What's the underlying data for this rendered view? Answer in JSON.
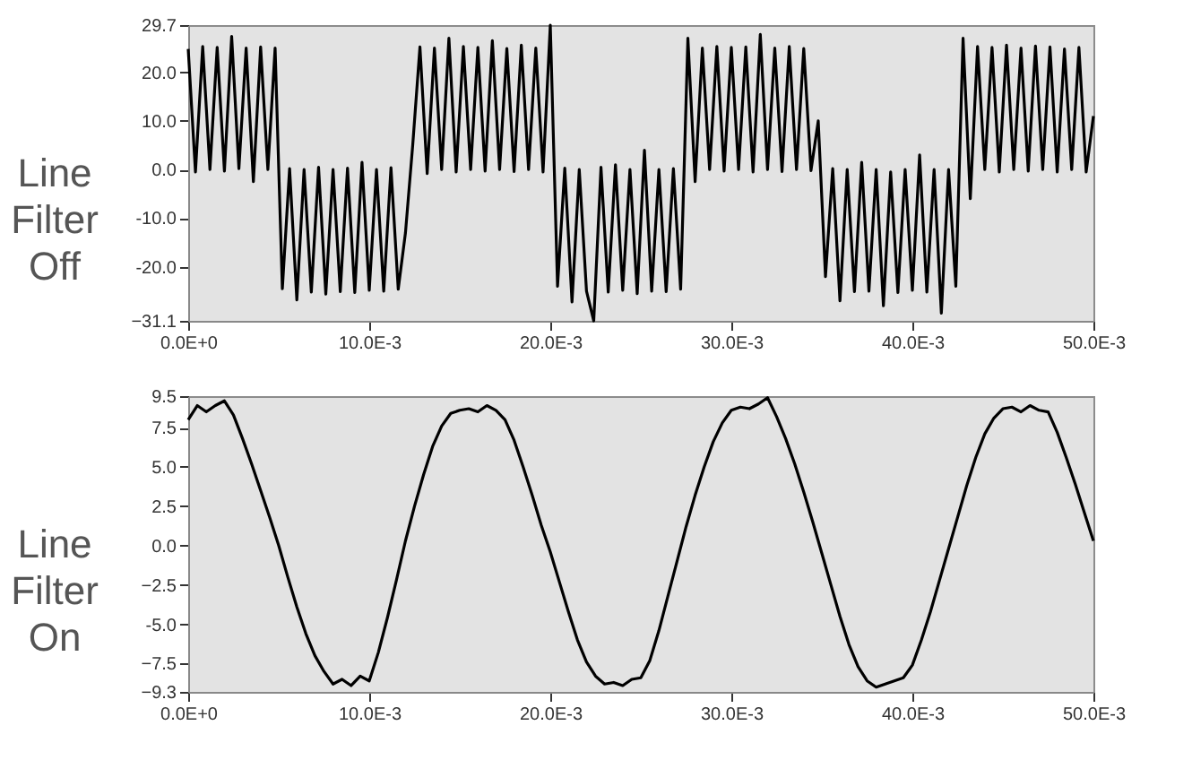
{
  "chart_data": [
    {
      "type": "line",
      "ylabel": "Line Filter Off",
      "color": "#000000",
      "grid": false,
      "xlim": [
        0,
        0.05
      ],
      "ylim": [
        -31.1,
        29.7
      ],
      "xticks": [
        {
          "value": 0,
          "label": "0.0E+0"
        },
        {
          "value": 0.01,
          "label": "10.0E-3"
        },
        {
          "value": 0.02,
          "label": "20.0E-3"
        },
        {
          "value": 0.03,
          "label": "30.0E-3"
        },
        {
          "value": 0.04,
          "label": "40.0E-3"
        },
        {
          "value": 0.05,
          "label": "50.0E-3"
        }
      ],
      "yticks": [
        29.7,
        {
          "value": 20,
          "label": "20.0"
        },
        {
          "value": 10,
          "label": "10.0"
        },
        {
          "value": 0,
          "label": "0.0"
        },
        {
          "value": -10,
          "label": "-10.0"
        },
        {
          "value": -20,
          "label": "-20.0"
        },
        -31.1
      ],
      "x": [
        0,
        0.0004,
        0.0008,
        0.0012,
        0.0016,
        0.002,
        0.0024,
        0.0028,
        0.0032,
        0.0036,
        0.004,
        0.0044,
        0.0048,
        0.0052,
        0.0056,
        0.006,
        0.0064,
        0.0068,
        0.0072,
        0.0076,
        0.008,
        0.0084,
        0.0088,
        0.0092,
        0.0096,
        0.01,
        0.0104,
        0.0108,
        0.0112,
        0.0116,
        0.012,
        0.0124,
        0.0128,
        0.0132,
        0.0136,
        0.014,
        0.0144,
        0.0148,
        0.0152,
        0.0156,
        0.016,
        0.0164,
        0.0168,
        0.0172,
        0.0176,
        0.018,
        0.0184,
        0.0188,
        0.0192,
        0.0196,
        0.02,
        0.0204,
        0.0208,
        0.0212,
        0.0216,
        0.022,
        0.0224,
        0.0228,
        0.0232,
        0.0236,
        0.024,
        0.0244,
        0.0248,
        0.0252,
        0.0256,
        0.026,
        0.0264,
        0.0268,
        0.0272,
        0.0276,
        0.028,
        0.0284,
        0.0288,
        0.0292,
        0.0296,
        0.03,
        0.0304,
        0.0308,
        0.0312,
        0.0316,
        0.032,
        0.0324,
        0.0328,
        0.0332,
        0.0336,
        0.034,
        0.0344,
        0.0348,
        0.0352,
        0.0356,
        0.036,
        0.0364,
        0.0368,
        0.0372,
        0.0376,
        0.038,
        0.0384,
        0.0388,
        0.0392,
        0.0396,
        0.04,
        0.0404,
        0.0408,
        0.0412,
        0.0416,
        0.042,
        0.0424,
        0.0428,
        0.0432,
        0.0436,
        0.044,
        0.0444,
        0.0448,
        0.0452,
        0.0456,
        0.046,
        0.0464,
        0.0468,
        0.0472,
        0.0476,
        0.048,
        0.0484,
        0.0488,
        0.0492,
        0.0496,
        0.05
      ],
      "values": [
        24.8,
        -0.5,
        25.3,
        0,
        25.1,
        -0.3,
        27.4,
        0.2,
        25.0,
        -2.5,
        25.2,
        0,
        25.0,
        -24.5,
        0.2,
        -26.8,
        0,
        -25.2,
        0.5,
        -25.6,
        0,
        -25.1,
        0.3,
        -25.3,
        1.5,
        -24.8,
        0,
        -25.0,
        0.4,
        -24.6,
        -13.0,
        5.0,
        25.2,
        -0.8,
        25.0,
        0,
        27.0,
        -0.5,
        25.3,
        0,
        25.1,
        -0.3,
        26.5,
        0,
        24.9,
        -0.4,
        25.6,
        0,
        25.0,
        -0.5,
        29.7,
        -24.0,
        0.3,
        -27.2,
        0,
        -25.0,
        -31.1,
        0.5,
        -25.2,
        1.0,
        -24.8,
        0,
        -25.5,
        4.0,
        -25.0,
        0,
        -25.1,
        0.2,
        -24.6,
        27.0,
        -2.5,
        25.0,
        0,
        25.3,
        -0.3,
        25.1,
        0,
        25.2,
        -0.5,
        27.8,
        0,
        25.0,
        -0.4,
        25.3,
        0,
        24.9,
        -0.2,
        10.0,
        -22.0,
        0.2,
        -27.0,
        0,
        -25.1,
        1.5,
        -25.0,
        0,
        -28.0,
        -0.5,
        -25.3,
        0,
        -24.8,
        3.0,
        -25.2,
        0,
        -29.5,
        0,
        -24.0,
        27.0,
        -6.0,
        25.3,
        0,
        25.1,
        -0.5,
        25.6,
        0,
        25.0,
        -0.3,
        25.4,
        0,
        25.2,
        -0.5,
        24.8,
        0,
        25.1,
        -0.5,
        11.0
      ]
    },
    {
      "type": "line",
      "ylabel": "Line Filter On",
      "color": "#000000",
      "grid": false,
      "xlim": [
        0,
        0.05
      ],
      "ylim": [
        -9.3,
        9.5
      ],
      "xticks": [
        {
          "value": 0,
          "label": "0.0E+0"
        },
        {
          "value": 0.01,
          "label": "10.0E-3"
        },
        {
          "value": 0.02,
          "label": "20.0E-3"
        },
        {
          "value": 0.03,
          "label": "30.0E-3"
        },
        {
          "value": 0.04,
          "label": "40.0E-3"
        },
        {
          "value": 0.05,
          "label": "50.0E-3"
        }
      ],
      "yticks": [
        9.5,
        7.5,
        {
          "value": 5,
          "label": "5.0"
        },
        2.5,
        {
          "value": 0,
          "label": "0.0"
        },
        -2.5,
        {
          "value": -5,
          "label": "-5.0"
        },
        -7.5,
        -9.3
      ],
      "x": [
        0,
        0.0005,
        0.001,
        0.0015,
        0.002,
        0.0025,
        0.003,
        0.0035,
        0.004,
        0.0045,
        0.005,
        0.0055,
        0.006,
        0.0065,
        0.007,
        0.0075,
        0.008,
        0.0085,
        0.009,
        0.0095,
        0.01,
        0.0105,
        0.011,
        0.0115,
        0.012,
        0.0125,
        0.013,
        0.0135,
        0.014,
        0.0145,
        0.015,
        0.0155,
        0.016,
        0.0165,
        0.017,
        0.0175,
        0.018,
        0.0185,
        0.019,
        0.0195,
        0.02,
        0.0205,
        0.021,
        0.0215,
        0.022,
        0.0225,
        0.023,
        0.0235,
        0.024,
        0.0245,
        0.025,
        0.0255,
        0.026,
        0.0265,
        0.027,
        0.0275,
        0.028,
        0.0285,
        0.029,
        0.0295,
        0.03,
        0.0305,
        0.031,
        0.0315,
        0.032,
        0.0325,
        0.033,
        0.0335,
        0.034,
        0.0345,
        0.035,
        0.0355,
        0.036,
        0.0365,
        0.037,
        0.0375,
        0.038,
        0.0385,
        0.039,
        0.0395,
        0.04,
        0.0405,
        0.041,
        0.0415,
        0.042,
        0.0425,
        0.043,
        0.0435,
        0.044,
        0.0445,
        0.045,
        0.0455,
        0.046,
        0.0465,
        0.047,
        0.0475,
        0.048,
        0.0485,
        0.049,
        0.0495,
        0.05
      ],
      "values": [
        8.0,
        8.9,
        8.5,
        8.9,
        9.2,
        8.3,
        6.8,
        5.2,
        3.5,
        1.8,
        0.0,
        -2.0,
        -3.9,
        -5.6,
        -7.0,
        -8.0,
        -8.8,
        -8.5,
        -8.9,
        -8.3,
        -8.6,
        -6.8,
        -4.6,
        -2.2,
        0.3,
        2.5,
        4.5,
        6.3,
        7.6,
        8.4,
        8.6,
        8.7,
        8.5,
        8.9,
        8.6,
        8.0,
        6.7,
        5.0,
        3.2,
        1.3,
        -0.4,
        -2.3,
        -4.2,
        -6.0,
        -7.4,
        -8.3,
        -8.8,
        -8.7,
        -8.9,
        -8.5,
        -8.4,
        -7.3,
        -5.4,
        -3.2,
        -1.0,
        1.2,
        3.2,
        5.0,
        6.6,
        7.8,
        8.6,
        8.8,
        8.7,
        9.0,
        9.4,
        8.2,
        6.8,
        5.2,
        3.4,
        1.5,
        -0.5,
        -2.5,
        -4.5,
        -6.3,
        -7.7,
        -8.6,
        -9.0,
        -8.8,
        -8.6,
        -8.4,
        -7.6,
        -6.0,
        -4.2,
        -2.2,
        -0.2,
        1.8,
        3.8,
        5.6,
        7.1,
        8.1,
        8.7,
        8.8,
        8.5,
        8.9,
        8.6,
        8.5,
        7.2,
        5.6,
        3.9,
        2.1,
        0.3
      ]
    }
  ]
}
